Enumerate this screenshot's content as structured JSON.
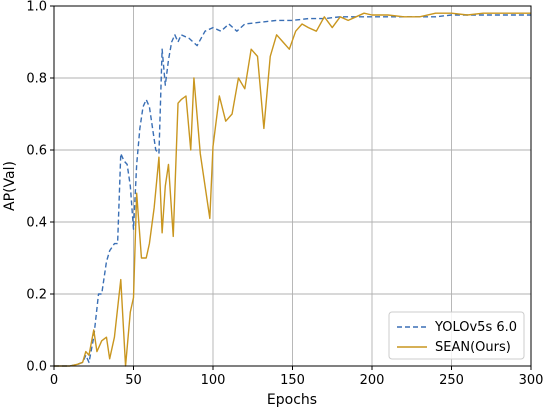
{
  "chart_data": {
    "type": "line",
    "title": "",
    "xlabel": "Epochs",
    "ylabel": "AP(Val)",
    "xlim": [
      0,
      300
    ],
    "ylim": [
      0,
      1.0
    ],
    "xticks": [
      0,
      50,
      100,
      150,
      200,
      250,
      300
    ],
    "yticks": [
      0.0,
      0.2,
      0.4,
      0.6,
      0.8,
      1.0
    ],
    "xtick_labels": [
      "0",
      "50",
      "100",
      "150",
      "200",
      "250",
      "300"
    ],
    "ytick_labels": [
      "0.0",
      "0.2",
      "0.4",
      "0.6",
      "0.8",
      "1.0"
    ],
    "grid": true,
    "legend_position": "lower-right",
    "series": [
      {
        "name": "YOLOv5s 6.0",
        "color": "#3a6fb5",
        "style": "dashed",
        "x": [
          0,
          5,
          10,
          15,
          18,
          20,
          22,
          25,
          28,
          30,
          33,
          35,
          38,
          40,
          42,
          44,
          46,
          48,
          50,
          52,
          54,
          56,
          58,
          60,
          62,
          64,
          66,
          68,
          70,
          72,
          74,
          76,
          78,
          80,
          85,
          90,
          95,
          100,
          105,
          110,
          115,
          120,
          130,
          140,
          150,
          160,
          170,
          180,
          190,
          200,
          210,
          220,
          230,
          240,
          250,
          260,
          270,
          280,
          290,
          300
        ],
        "y": [
          0,
          0,
          0,
          0.005,
          0.01,
          0.03,
          0.01,
          0.08,
          0.2,
          0.2,
          0.29,
          0.32,
          0.34,
          0.34,
          0.59,
          0.57,
          0.56,
          0.5,
          0.38,
          0.56,
          0.66,
          0.72,
          0.74,
          0.72,
          0.66,
          0.6,
          0.59,
          0.88,
          0.78,
          0.85,
          0.9,
          0.92,
          0.9,
          0.92,
          0.91,
          0.89,
          0.93,
          0.94,
          0.93,
          0.95,
          0.93,
          0.95,
          0.955,
          0.96,
          0.96,
          0.965,
          0.965,
          0.97,
          0.97,
          0.97,
          0.97,
          0.97,
          0.97,
          0.97,
          0.975,
          0.975,
          0.975,
          0.975,
          0.975,
          0.975
        ]
      },
      {
        "name": "SEAN(Ours)",
        "color": "#c9961f",
        "style": "solid",
        "x": [
          0,
          5,
          10,
          15,
          18,
          20,
          22,
          25,
          27,
          30,
          33,
          35,
          38,
          42,
          45,
          48,
          50,
          52,
          55,
          58,
          60,
          63,
          66,
          68,
          70,
          72,
          75,
          78,
          80,
          83,
          86,
          88,
          92,
          98,
          100,
          104,
          108,
          112,
          116,
          120,
          124,
          128,
          132,
          136,
          140,
          144,
          148,
          152,
          156,
          160,
          165,
          170,
          175,
          180,
          185,
          190,
          195,
          200,
          210,
          220,
          230,
          240,
          250,
          260,
          270,
          280,
          290,
          300
        ],
        "y": [
          0,
          0,
          0,
          0.005,
          0.01,
          0.04,
          0.03,
          0.1,
          0.04,
          0.07,
          0.08,
          0.02,
          0.08,
          0.24,
          0.0,
          0.15,
          0.19,
          0.48,
          0.3,
          0.3,
          0.34,
          0.44,
          0.58,
          0.37,
          0.5,
          0.56,
          0.36,
          0.73,
          0.74,
          0.75,
          0.6,
          0.8,
          0.59,
          0.41,
          0.61,
          0.75,
          0.68,
          0.7,
          0.8,
          0.77,
          0.88,
          0.86,
          0.66,
          0.86,
          0.92,
          0.9,
          0.88,
          0.93,
          0.95,
          0.94,
          0.93,
          0.97,
          0.94,
          0.97,
          0.96,
          0.97,
          0.98,
          0.975,
          0.975,
          0.97,
          0.97,
          0.98,
          0.98,
          0.975,
          0.98,
          0.98,
          0.98,
          0.98
        ]
      }
    ]
  }
}
